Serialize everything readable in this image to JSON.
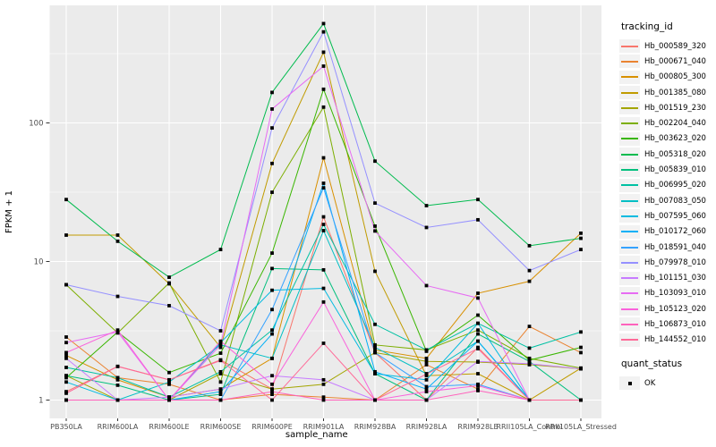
{
  "chart_data": {
    "type": "line",
    "title": "",
    "xlabel": "sample_name",
    "ylabel": "FPKM + 1",
    "y_scale": "log10",
    "y_ticks": [
      1,
      10,
      100
    ],
    "y_minor_ticks": [
      3.162,
      31.62,
      316.2
    ],
    "ylim": [
      0.72,
      700
    ],
    "grid": "on",
    "legend_position": "right",
    "panel_color": "#EBEBEB",
    "grid_color": "#FFFFFF",
    "tick_label_color": "#4D4D4D",
    "marker": "black-square",
    "categories": [
      "PB350LA",
      "RRIM600LA",
      "RRIM600LE",
      "RRIM600SE",
      "RRIM600PE",
      "RRIM901LA",
      "RRIM928BA",
      "RRIM928LA",
      "RRIM928LE",
      "RRII105LA_Control",
      "RRII105LA_Stressed"
    ],
    "legend_title": "tracking_id",
    "series": [
      {
        "name": "Hb_000589_320",
        "color": "#F8766D",
        "values": [
          1.15,
          1.75,
          1.4,
          1.95,
          1.2,
          21,
          2.2,
          1.0,
          2.4,
          1.0,
          1.0
        ]
      },
      {
        "name": "Hb_000671_040",
        "color": "#EA8331",
        "values": [
          2.85,
          1.45,
          1.3,
          1.0,
          1.1,
          1.05,
          1.0,
          1.8,
          1.2,
          3.4,
          2.2
        ]
      },
      {
        "name": "Hb_000805_300",
        "color": "#D89000",
        "values": [
          2.1,
          1.4,
          1.05,
          1.2,
          2.0,
          56,
          2.3,
          2.0,
          5.9,
          7.2,
          16
        ]
      },
      {
        "name": "Hb_001385_080",
        "color": "#C09B00",
        "values": [
          15.5,
          15.5,
          6.9,
          2.4,
          51,
          324,
          8.5,
          1.5,
          1.55,
          1.0,
          1.7
        ]
      },
      {
        "name": "Hb_001519_230",
        "color": "#A3A500",
        "values": [
          1.5,
          1.0,
          1.0,
          1.55,
          1.2,
          1.3,
          2.2,
          1.9,
          1.88,
          1.8,
          1.68
        ]
      },
      {
        "name": "Hb_002204_040",
        "color": "#7CAE00",
        "values": [
          6.8,
          3.05,
          7.0,
          1.35,
          31.6,
          130,
          2.5,
          2.3,
          3.2,
          2.0,
          1.7
        ]
      },
      {
        "name": "Hb_003623_020",
        "color": "#39B600",
        "values": [
          1.45,
          3.1,
          1.58,
          2.18,
          11.5,
          175,
          18,
          2.25,
          4.1,
          1.94,
          2.4
        ]
      },
      {
        "name": "Hb_005318_020",
        "color": "#00BB4E",
        "values": [
          28,
          14,
          7.7,
          12.2,
          166,
          521,
          53,
          25.3,
          28,
          13,
          14.7
        ]
      },
      {
        "name": "Hb_005839_010",
        "color": "#00BF7D",
        "values": [
          1.5,
          1.28,
          1.0,
          1.1,
          8.9,
          8.7,
          1.55,
          1.0,
          3.0,
          1.9,
          1.0
        ]
      },
      {
        "name": "Hb_006995_020",
        "color": "#00C1A3",
        "values": [
          1.72,
          1.45,
          1.05,
          1.6,
          3.2,
          18.5,
          3.52,
          2.3,
          3.58,
          2.37,
          3.1
        ]
      },
      {
        "name": "Hb_007083_050",
        "color": "#00BFC4",
        "values": [
          1.0,
          1.0,
          1.35,
          2.5,
          2.0,
          16.7,
          2.4,
          1.55,
          2.66,
          1.0,
          1.0
        ]
      },
      {
        "name": "Hb_007595_060",
        "color": "#00BAE0",
        "values": [
          1.35,
          1.0,
          1.0,
          2.6,
          6.2,
          6.4,
          1.55,
          1.4,
          3.58,
          1.0,
          1.0
        ]
      },
      {
        "name": "Hb_010172_060",
        "color": "#00B0F6",
        "values": [
          1.0,
          1.0,
          1.0,
          1.15,
          3.0,
          36.7,
          1.6,
          1.2,
          2.66,
          1.0,
          1.0
        ]
      },
      {
        "name": "Hb_018591_040",
        "color": "#35A2FF",
        "values": [
          1.0,
          1.0,
          1.0,
          1.0,
          4.5,
          34,
          2.2,
          1.25,
          1.3,
          1.0,
          1.0
        ]
      },
      {
        "name": "Hb_079978_010",
        "color": "#9590FF",
        "values": [
          6.8,
          5.6,
          4.8,
          3.16,
          92,
          454,
          26.4,
          17.6,
          20,
          8.6,
          12.2
        ]
      },
      {
        "name": "Hb_101151_030",
        "color": "#C77CFF",
        "values": [
          2.0,
          1.0,
          1.05,
          1.2,
          1.5,
          1.4,
          1.0,
          1.0,
          1.9,
          1.83,
          1.68
        ]
      },
      {
        "name": "Hb_103093_010",
        "color": "#E76BF3",
        "values": [
          2.6,
          3.1,
          1.0,
          2.5,
          126,
          257,
          16.6,
          6.7,
          5.45,
          1.0,
          1.0
        ]
      },
      {
        "name": "Hb_105123_020",
        "color": "#FA62DB",
        "values": [
          2.2,
          3.2,
          1.0,
          2.66,
          1.3,
          5.1,
          1.0,
          1.15,
          1.27,
          1.0,
          1.0
        ]
      },
      {
        "name": "Hb_106873_010",
        "color": "#FF62BC",
        "values": [
          1.0,
          1.0,
          1.0,
          1.0,
          1.15,
          1.0,
          1.0,
          1.0,
          1.17,
          1.0,
          1.0
        ]
      },
      {
        "name": "Hb_144552_010",
        "color": "#FF6A98",
        "values": [
          1.12,
          1.75,
          1.4,
          1.93,
          1.0,
          2.57,
          1.0,
          1.54,
          2.35,
          1.0,
          1.0
        ]
      }
    ],
    "legend2_title": "quant_status",
    "legend2_items": [
      {
        "label": "OK",
        "marker": "black-square"
      }
    ]
  }
}
